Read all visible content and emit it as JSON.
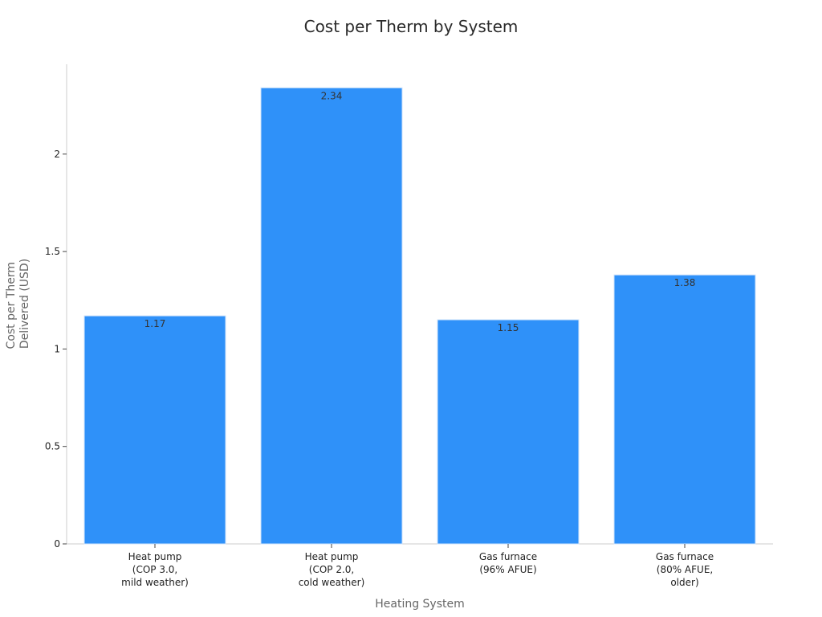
{
  "chart_data": {
    "type": "bar",
    "title": "Cost per Therm by System",
    "xlabel": "Heating System",
    "ylabel": [
      "Cost per Therm",
      "Delivered (USD)"
    ],
    "categories": [
      [
        "Heat pump",
        "(COP 3.0,",
        "mild weather)"
      ],
      [
        "Heat pump",
        "(COP 2.0,",
        "cold weather)"
      ],
      [
        "Gas furnace",
        "(96% AFUE)"
      ],
      [
        "Gas furnace",
        "(80% AFUE,",
        "older)"
      ]
    ],
    "values": [
      1.17,
      2.34,
      1.15,
      1.38
    ],
    "data_labels": [
      "1.17",
      "2.34",
      "1.15",
      "1.38"
    ],
    "ylim": [
      0,
      2.46
    ],
    "yticks": [
      0,
      0.5,
      1,
      1.5,
      2
    ],
    "ytick_labels": [
      "0",
      "0.5",
      "1",
      "1.5",
      "2"
    ],
    "grid": false,
    "bar_color": "#2f91f9",
    "bar_edge_color": "#cfe3fb"
  }
}
